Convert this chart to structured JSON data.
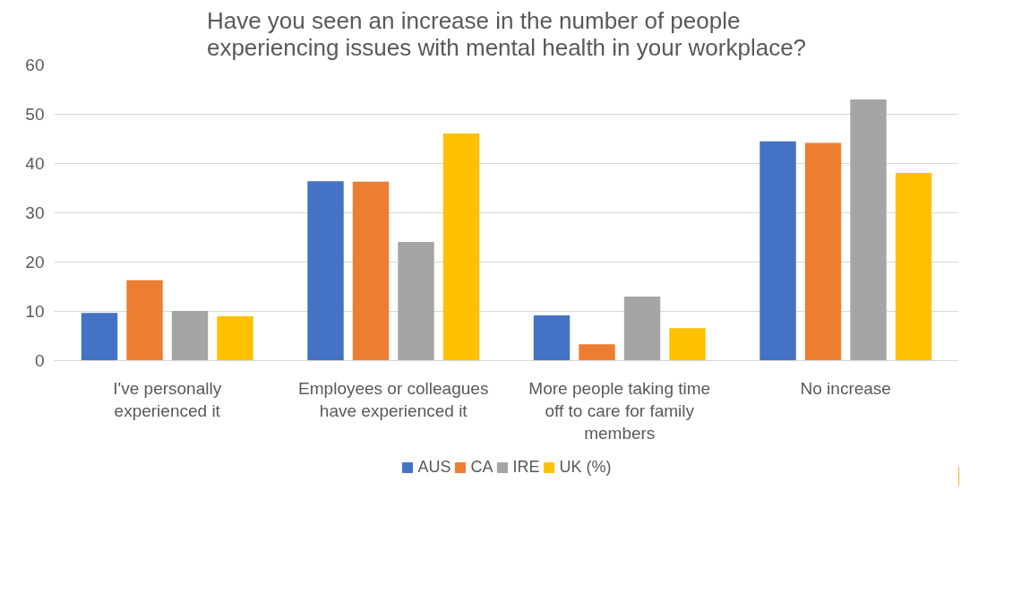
{
  "chart_data": {
    "type": "bar",
    "title": "Have you seen an increase in the number of people experiencing issues with mental health in your workplace?",
    "categories": [
      "I've personally experienced it",
      "Employees or colleagues have experienced it",
      "More people taking time off to care for family members",
      "No increase"
    ],
    "series": [
      {
        "name": "AUS",
        "color": "#4472c4",
        "values": [
          9.7,
          36.4,
          9.2,
          44.5
        ]
      },
      {
        "name": "CA",
        "color": "#ed7d31",
        "values": [
          16.3,
          36.3,
          3.3,
          44.2
        ]
      },
      {
        "name": "IRE",
        "color": "#a5a5a5",
        "values": [
          10.1,
          24.1,
          13,
          53
        ]
      },
      {
        "name": "UK (%)",
        "color": "#ffc000",
        "values": [
          9,
          46.1,
          6.6,
          38.1
        ]
      }
    ],
    "ylim": [
      0,
      60
    ],
    "yticks": [
      0,
      10,
      20,
      30,
      40,
      50,
      60
    ],
    "grid": "y",
    "legend": "bottom"
  }
}
